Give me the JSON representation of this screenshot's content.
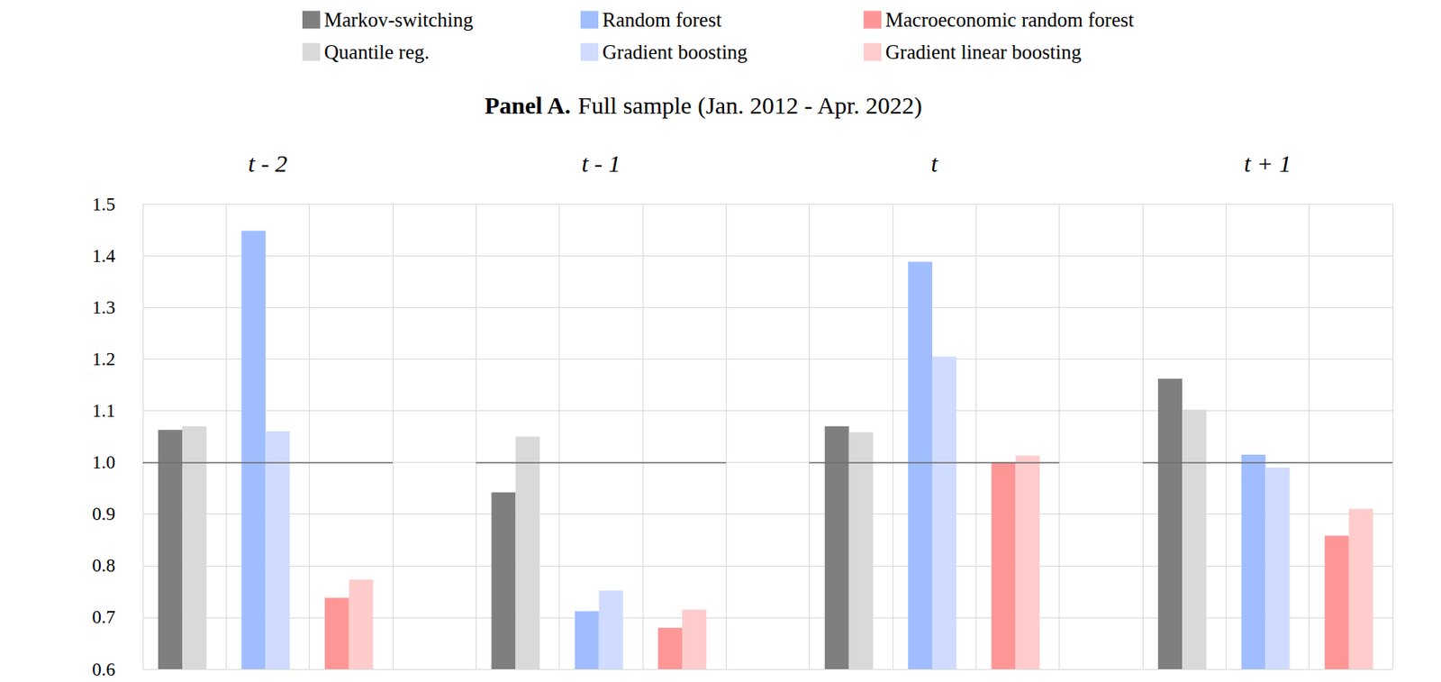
{
  "chart_data": {
    "type": "bar",
    "panel": "Panel A.",
    "title": "Full sample (Jan. 2012 - Apr. 2022)",
    "categories": [
      "t - 2",
      "t - 1",
      "t",
      "t + 1"
    ],
    "series": [
      {
        "name": "Markov-switching",
        "color": "#7f7f7f",
        "values": [
          1.063,
          0.942,
          1.07,
          1.162
        ]
      },
      {
        "name": "Quantile reg.",
        "color": "#d9d9d9",
        "values": [
          1.07,
          1.05,
          1.058,
          1.102
        ]
      },
      {
        "name": "Random forest",
        "color": "#a0beff",
        "values": [
          1.448,
          0.712,
          1.388,
          1.015
        ]
      },
      {
        "name": "Gradient boosting",
        "color": "#cfdcff",
        "values": [
          1.06,
          0.752,
          1.205,
          0.99
        ]
      },
      {
        "name": "Macroeconomic random forest",
        "color": "#ff9696",
        "values": [
          0.738,
          0.68,
          1.0,
          0.858
        ]
      },
      {
        "name": "Gradient linear boosting",
        "color": "#ffcccc",
        "values": [
          0.773,
          0.715,
          1.013,
          0.91
        ]
      }
    ],
    "hline": 1.0,
    "ylim": [
      0.6,
      1.5
    ],
    "yticks": [
      0.6,
      0.7,
      0.8,
      0.9,
      {
        "value": 1.0,
        "label": "1.0"
      },
      1.1,
      1.2,
      1.3,
      1.4,
      1.5
    ],
    "grid": true,
    "legend": "top"
  }
}
